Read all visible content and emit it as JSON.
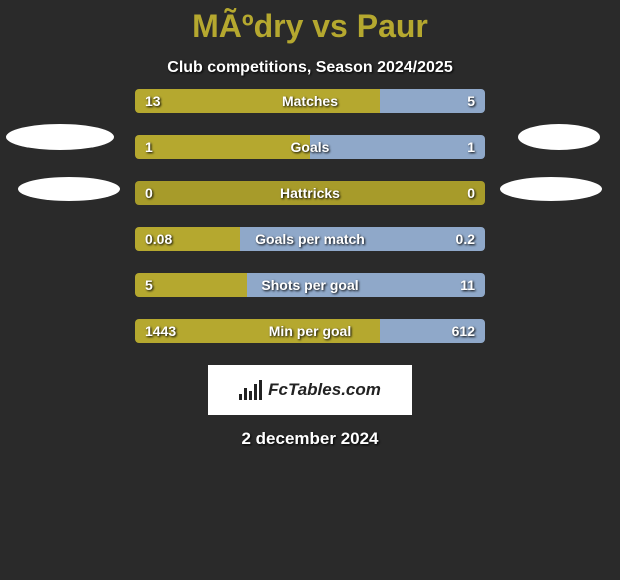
{
  "title": "MÃºdry vs Paur",
  "title_color": "#b5a82f",
  "subtitle": "Club competitions, Season 2024/2025",
  "background_color": "#2a2a2a",
  "color_left": "#b5a82f",
  "color_right": "#8fa8c9",
  "color_neutral": "#a79b2a",
  "rows": [
    {
      "label": "Matches",
      "left": "13",
      "right": "5",
      "left_pct": 70,
      "right_pct": 30
    },
    {
      "label": "Goals",
      "left": "1",
      "right": "1",
      "left_pct": 50,
      "right_pct": 50
    },
    {
      "label": "Hattricks",
      "left": "0",
      "right": "0",
      "left_pct": 100,
      "right_pct": 0,
      "neutral": true
    },
    {
      "label": "Goals per match",
      "left": "0.08",
      "right": "0.2",
      "left_pct": 30,
      "right_pct": 70
    },
    {
      "label": "Shots per goal",
      "left": "5",
      "right": "11",
      "left_pct": 32,
      "right_pct": 68
    },
    {
      "label": "Min per goal",
      "left": "1443",
      "right": "612",
      "left_pct": 70,
      "right_pct": 30
    }
  ],
  "logo_text": "FcTables.com",
  "date": "2 december 2024"
}
